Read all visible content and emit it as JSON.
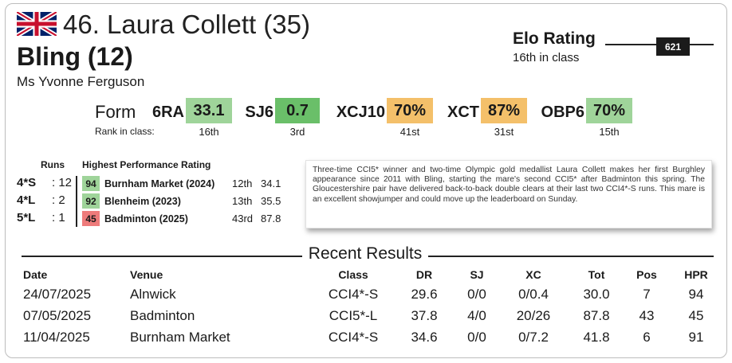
{
  "header": {
    "rider_line": "46. Laura Collett (35)",
    "horse_line": "Bling (12)",
    "owner": "Ms Yvonne Ferguson"
  },
  "elo": {
    "title": "Elo Rating",
    "class_rank": "16th in class",
    "value": "621"
  },
  "form": {
    "label": "Form",
    "rank_label": "Rank in class:",
    "items": [
      {
        "name": "6RA",
        "value": "33.1",
        "rank": "16th",
        "color": "#9fd49a"
      },
      {
        "name": "SJ6",
        "value": "0.7",
        "rank": "3rd",
        "color": "#6abf69"
      },
      {
        "name": "XCJ10",
        "value": "70%",
        "rank": "41st",
        "color": "#f4c06a"
      },
      {
        "name": "XCT",
        "value": "87%",
        "rank": "31st",
        "color": "#f4c06a"
      },
      {
        "name": "OBP6",
        "value": "70%",
        "rank": "15th",
        "color": "#9fd49a"
      }
    ]
  },
  "runs": {
    "runs_header": "Runs",
    "hpr_header": "Highest Performance Rating",
    "rows": [
      {
        "label": "4*S",
        "count": ": 12",
        "hpr": "94",
        "hpr_color": "#9fd49a",
        "event": "Burnham Market (2024)",
        "place": "12th",
        "score": "34.1"
      },
      {
        "label": "4*L",
        "count": ":  2",
        "hpr": "92",
        "hpr_color": "#9fd49a",
        "event": "Blenheim (2023)",
        "place": "13th",
        "score": "35.5"
      },
      {
        "label": "5*L",
        "count": ":  1",
        "hpr": "45",
        "hpr_color": "#ee7b7b",
        "event": "Badminton (2025)",
        "place": "43rd",
        "score": "87.8"
      }
    ]
  },
  "blurb": "Three-time CCI5* winner and two-time Olympic gold medallist Laura Collett makes her first Burghley appearance since 2011 with Bling, starting the mare's second CCI5* after Badminton this spring. The Gloucestershire pair have delivered back-to-back double clears at their last two CCI4*-S runs. This mare is an excellent showjumper and could move up the leaderboard on Sunday.",
  "recent": {
    "title": "Recent Results",
    "columns": [
      "Date",
      "Venue",
      "Class",
      "DR",
      "SJ",
      "XC",
      "Tot",
      "Pos",
      "HPR"
    ],
    "rows": [
      [
        "24/07/2025",
        "Alnwick",
        "CCI4*-S",
        "29.6",
        "0/0",
        "0/0.4",
        "30.0",
        "7",
        "94"
      ],
      [
        "07/05/2025",
        "Badminton",
        "CCI5*-L",
        "37.8",
        "4/0",
        "20/26",
        "87.8",
        "43",
        "45"
      ],
      [
        "11/04/2025",
        "Burnham Market",
        "CCI4*-S",
        "34.6",
        "0/0",
        "0/7.2",
        "41.8",
        "6",
        "91"
      ]
    ]
  }
}
